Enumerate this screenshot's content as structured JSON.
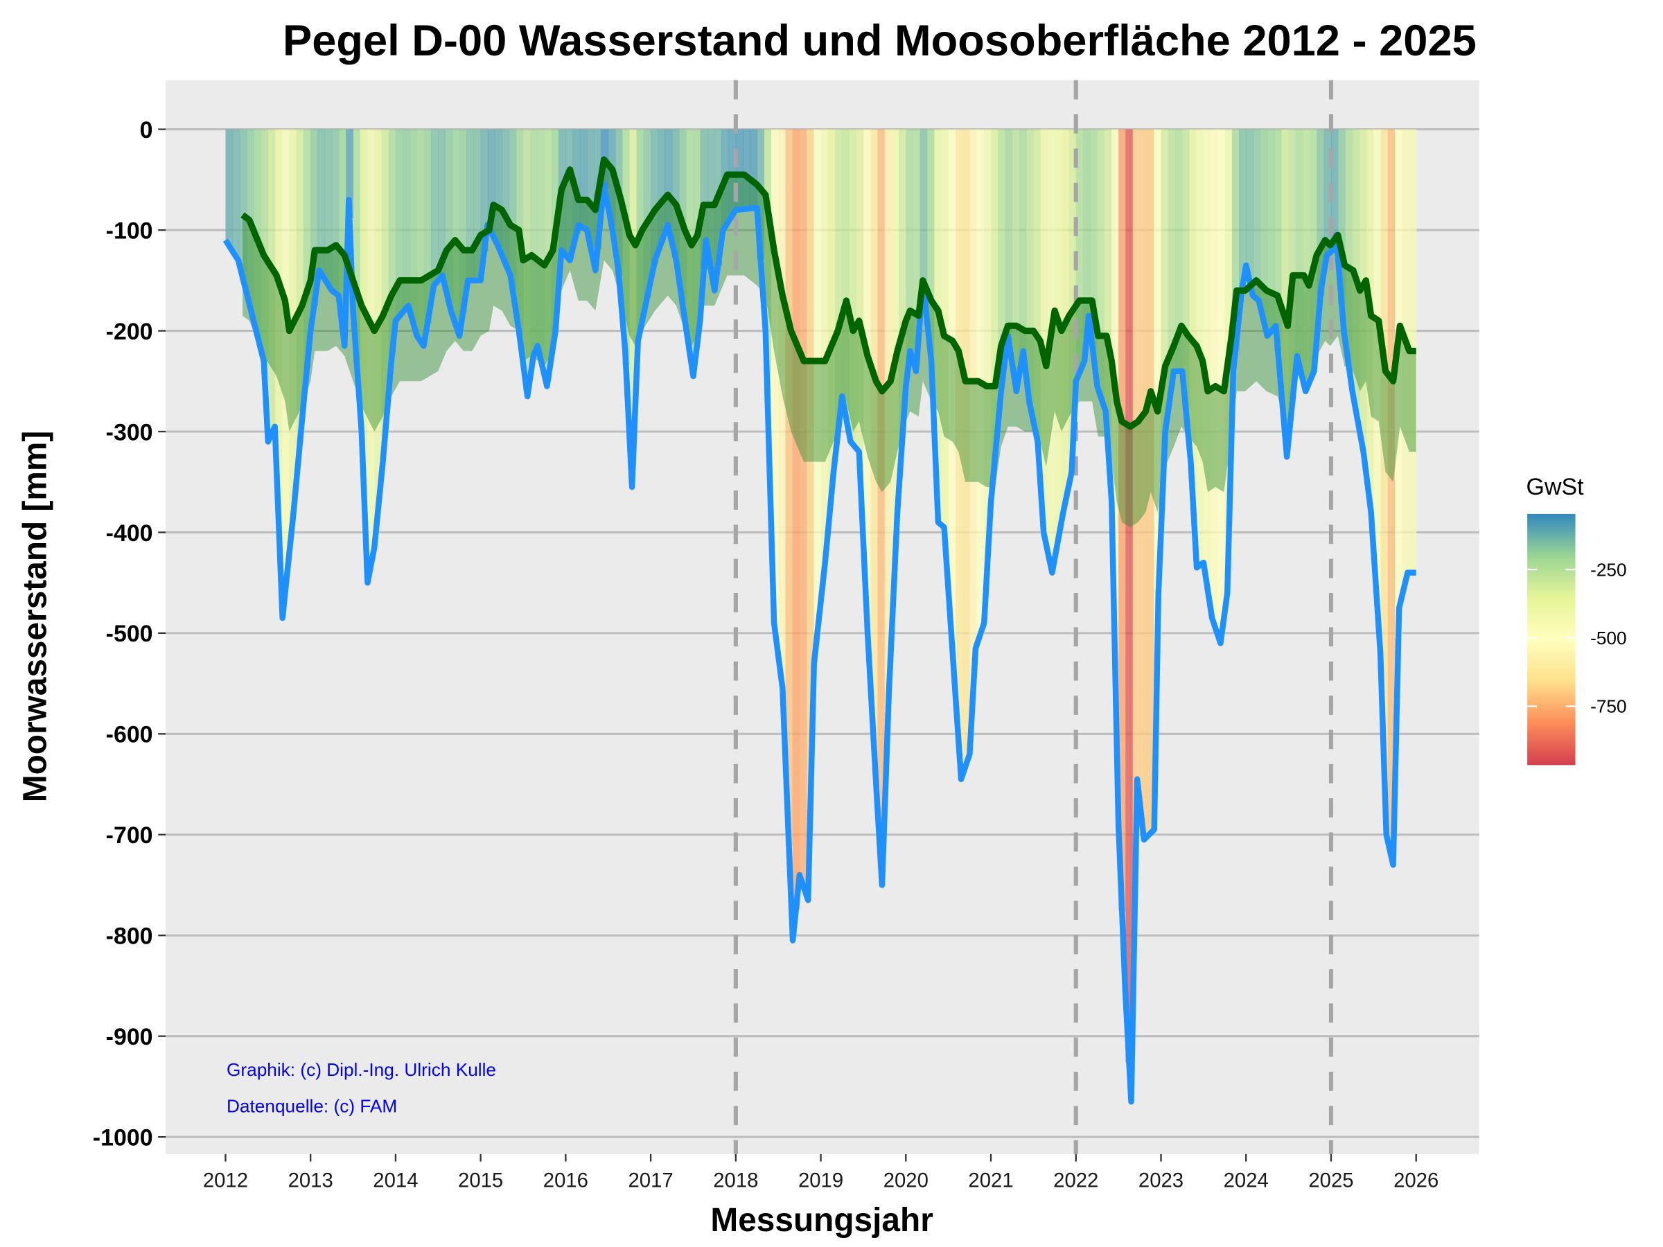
{
  "chart_data": {
    "type": "line",
    "title": "Pegel D-00 Wasserstand und Moosoberfläche 2012 - 2025",
    "xlabel": "Messungsjahr",
    "ylabel": "Moorwasserstand [mm]",
    "xlim": [
      2012,
      2026
    ],
    "ylim": [
      -1000,
      0
    ],
    "x_ticks": [
      "2012",
      "2013",
      "2014",
      "2015",
      "2016",
      "2017",
      "2018",
      "2019",
      "2020",
      "2021",
      "2022",
      "2023",
      "2024",
      "2025",
      "2026"
    ],
    "y_ticks": [
      "0",
      "-100",
      "-200",
      "-300",
      "-400",
      "-500",
      "-600",
      "-700",
      "-800",
      "-900",
      "-1000"
    ],
    "grid": "horizontal",
    "dashed_vlines": [
      2018,
      2022,
      2025
    ],
    "annotations": [
      "Graphik: (c) Dipl.-Ing. Ulrich Kulle",
      "Datenquelle: (c) FAM"
    ],
    "legend": {
      "title": "GwSt",
      "position": "right",
      "ticks": [
        "-250",
        "-500",
        "-750"
      ],
      "range": [
        -965,
        -47
      ],
      "colors": [
        "#3288bd",
        "#99d594",
        "#e6f598",
        "#ffffbf",
        "#fee08b",
        "#fc8d59",
        "#d53e4f"
      ]
    },
    "colors": {
      "water": "#1e90ff",
      "moss": "#006400",
      "band": "#2e8b2e",
      "panel": "#ebebeb",
      "grid": "#bdbdbd",
      "vline": "#a6a6a6"
    },
    "moss_band_depth_mm": 100,
    "series": [
      {
        "key": "water",
        "points": [
          [
            2012.0,
            -110
          ],
          [
            2012.15,
            -130
          ],
          [
            2012.3,
            -180
          ],
          [
            2012.45,
            -230
          ],
          [
            2012.5,
            -310
          ],
          [
            2012.58,
            -295
          ],
          [
            2012.67,
            -485
          ],
          [
            2012.8,
            -380
          ],
          [
            2012.92,
            -270
          ],
          [
            2013.0,
            -200
          ],
          [
            2013.1,
            -140
          ],
          [
            2013.25,
            -160
          ],
          [
            2013.33,
            -165
          ],
          [
            2013.4,
            -215
          ],
          [
            2013.45,
            -70
          ],
          [
            2013.5,
            -180
          ],
          [
            2013.6,
            -300
          ],
          [
            2013.67,
            -450
          ],
          [
            2013.75,
            -415
          ],
          [
            2013.85,
            -330
          ],
          [
            2013.95,
            -230
          ],
          [
            2014.0,
            -190
          ],
          [
            2014.1,
            -180
          ],
          [
            2014.15,
            -175
          ],
          [
            2014.25,
            -205
          ],
          [
            2014.33,
            -215
          ],
          [
            2014.45,
            -155
          ],
          [
            2014.55,
            -145
          ],
          [
            2014.65,
            -180
          ],
          [
            2014.75,
            -205
          ],
          [
            2014.85,
            -150
          ],
          [
            2015.0,
            -150
          ],
          [
            2015.08,
            -95
          ],
          [
            2015.2,
            -115
          ],
          [
            2015.35,
            -145
          ],
          [
            2015.45,
            -200
          ],
          [
            2015.55,
            -265
          ],
          [
            2015.62,
            -225
          ],
          [
            2015.67,
            -215
          ],
          [
            2015.78,
            -255
          ],
          [
            2015.88,
            -200
          ],
          [
            2015.95,
            -120
          ],
          [
            2016.05,
            -130
          ],
          [
            2016.15,
            -95
          ],
          [
            2016.25,
            -100
          ],
          [
            2016.35,
            -140
          ],
          [
            2016.45,
            -55
          ],
          [
            2016.55,
            -100
          ],
          [
            2016.62,
            -140
          ],
          [
            2016.7,
            -220
          ],
          [
            2016.78,
            -355
          ],
          [
            2016.85,
            -210
          ],
          [
            2016.95,
            -170
          ],
          [
            2017.05,
            -130
          ],
          [
            2017.2,
            -95
          ],
          [
            2017.3,
            -130
          ],
          [
            2017.42,
            -200
          ],
          [
            2017.5,
            -245
          ],
          [
            2017.58,
            -190
          ],
          [
            2017.65,
            -110
          ],
          [
            2017.75,
            -160
          ],
          [
            2017.85,
            -100
          ],
          [
            2018.0,
            -80
          ],
          [
            2018.25,
            -78
          ],
          [
            2018.35,
            -200
          ],
          [
            2018.45,
            -490
          ],
          [
            2018.55,
            -555
          ],
          [
            2018.67,
            -805
          ],
          [
            2018.75,
            -740
          ],
          [
            2018.85,
            -765
          ],
          [
            2018.92,
            -530
          ],
          [
            2019.05,
            -430
          ],
          [
            2019.15,
            -340
          ],
          [
            2019.25,
            -265
          ],
          [
            2019.35,
            -310
          ],
          [
            2019.45,
            -320
          ],
          [
            2019.55,
            -500
          ],
          [
            2019.65,
            -650
          ],
          [
            2019.72,
            -750
          ],
          [
            2019.8,
            -560
          ],
          [
            2019.9,
            -380
          ],
          [
            2020.0,
            -255
          ],
          [
            2020.05,
            -220
          ],
          [
            2020.12,
            -240
          ],
          [
            2020.2,
            -150
          ],
          [
            2020.3,
            -230
          ],
          [
            2020.38,
            -390
          ],
          [
            2020.45,
            -395
          ],
          [
            2020.55,
            -520
          ],
          [
            2020.65,
            -645
          ],
          [
            2020.75,
            -620
          ],
          [
            2020.82,
            -515
          ],
          [
            2020.92,
            -490
          ],
          [
            2021.0,
            -370
          ],
          [
            2021.12,
            -260
          ],
          [
            2021.2,
            -205
          ],
          [
            2021.3,
            -260
          ],
          [
            2021.38,
            -220
          ],
          [
            2021.45,
            -270
          ],
          [
            2021.55,
            -310
          ],
          [
            2021.62,
            -400
          ],
          [
            2021.72,
            -440
          ],
          [
            2021.85,
            -380
          ],
          [
            2021.95,
            -340
          ],
          [
            2022.0,
            -250
          ],
          [
            2022.1,
            -230
          ],
          [
            2022.15,
            -185
          ],
          [
            2022.25,
            -255
          ],
          [
            2022.35,
            -280
          ],
          [
            2022.42,
            -370
          ],
          [
            2022.5,
            -690
          ],
          [
            2022.58,
            -855
          ],
          [
            2022.65,
            -965
          ],
          [
            2022.72,
            -645
          ],
          [
            2022.8,
            -705
          ],
          [
            2022.92,
            -695
          ],
          [
            2022.97,
            -460
          ],
          [
            2023.05,
            -300
          ],
          [
            2023.15,
            -240
          ],
          [
            2023.25,
            -240
          ],
          [
            2023.35,
            -330
          ],
          [
            2023.42,
            -435
          ],
          [
            2023.5,
            -430
          ],
          [
            2023.6,
            -485
          ],
          [
            2023.7,
            -510
          ],
          [
            2023.78,
            -460
          ],
          [
            2023.85,
            -240
          ],
          [
            2023.95,
            -160
          ],
          [
            2024.0,
            -135
          ],
          [
            2024.08,
            -165
          ],
          [
            2024.15,
            -170
          ],
          [
            2024.25,
            -205
          ],
          [
            2024.35,
            -195
          ],
          [
            2024.48,
            -325
          ],
          [
            2024.6,
            -225
          ],
          [
            2024.7,
            -260
          ],
          [
            2024.8,
            -240
          ],
          [
            2024.88,
            -160
          ],
          [
            2024.95,
            -125
          ],
          [
            2025.02,
            -120
          ],
          [
            2025.06,
            -105
          ],
          [
            2025.15,
            -200
          ],
          [
            2025.25,
            -260
          ],
          [
            2025.38,
            -320
          ],
          [
            2025.47,
            -380
          ],
          [
            2025.58,
            -520
          ],
          [
            2025.65,
            -700
          ],
          [
            2025.73,
            -730
          ],
          [
            2025.8,
            -475
          ],
          [
            2025.9,
            -440
          ],
          [
            2026.0,
            -440
          ]
        ]
      },
      {
        "key": "moss",
        "points": [
          [
            2012.2,
            -85
          ],
          [
            2012.28,
            -90
          ],
          [
            2012.45,
            -125
          ],
          [
            2012.6,
            -145
          ],
          [
            2012.7,
            -170
          ],
          [
            2012.75,
            -200
          ],
          [
            2012.9,
            -175
          ],
          [
            2013.0,
            -150
          ],
          [
            2013.05,
            -120
          ],
          [
            2013.2,
            -120
          ],
          [
            2013.3,
            -115
          ],
          [
            2013.4,
            -125
          ],
          [
            2013.5,
            -150
          ],
          [
            2013.6,
            -175
          ],
          [
            2013.75,
            -200
          ],
          [
            2013.85,
            -185
          ],
          [
            2013.95,
            -165
          ],
          [
            2014.05,
            -150
          ],
          [
            2014.3,
            -150
          ],
          [
            2014.5,
            -140
          ],
          [
            2014.6,
            -120
          ],
          [
            2014.7,
            -110
          ],
          [
            2014.8,
            -120
          ],
          [
            2014.9,
            -120
          ],
          [
            2015.0,
            -105
          ],
          [
            2015.1,
            -100
          ],
          [
            2015.15,
            -75
          ],
          [
            2015.25,
            -80
          ],
          [
            2015.35,
            -95
          ],
          [
            2015.45,
            -100
          ],
          [
            2015.5,
            -130
          ],
          [
            2015.6,
            -125
          ],
          [
            2015.75,
            -135
          ],
          [
            2015.85,
            -120
          ],
          [
            2015.95,
            -60
          ],
          [
            2016.05,
            -40
          ],
          [
            2016.15,
            -70
          ],
          [
            2016.25,
            -70
          ],
          [
            2016.35,
            -80
          ],
          [
            2016.45,
            -30
          ],
          [
            2016.55,
            -40
          ],
          [
            2016.65,
            -70
          ],
          [
            2016.75,
            -105
          ],
          [
            2016.82,
            -115
          ],
          [
            2016.9,
            -100
          ],
          [
            2017.05,
            -80
          ],
          [
            2017.2,
            -65
          ],
          [
            2017.3,
            -75
          ],
          [
            2017.4,
            -100
          ],
          [
            2017.48,
            -115
          ],
          [
            2017.55,
            -105
          ],
          [
            2017.62,
            -75
          ],
          [
            2017.75,
            -75
          ],
          [
            2017.9,
            -45
          ],
          [
            2018.0,
            -45
          ],
          [
            2018.1,
            -45
          ],
          [
            2018.25,
            -55
          ],
          [
            2018.35,
            -65
          ],
          [
            2018.45,
            -120
          ],
          [
            2018.55,
            -165
          ],
          [
            2018.65,
            -200
          ],
          [
            2018.8,
            -230
          ],
          [
            2019.05,
            -230
          ],
          [
            2019.2,
            -200
          ],
          [
            2019.3,
            -170
          ],
          [
            2019.38,
            -200
          ],
          [
            2019.45,
            -190
          ],
          [
            2019.55,
            -225
          ],
          [
            2019.65,
            -250
          ],
          [
            2019.72,
            -260
          ],
          [
            2019.82,
            -250
          ],
          [
            2019.9,
            -220
          ],
          [
            2020.0,
            -190
          ],
          [
            2020.05,
            -180
          ],
          [
            2020.15,
            -185
          ],
          [
            2020.2,
            -150
          ],
          [
            2020.3,
            -170
          ],
          [
            2020.38,
            -180
          ],
          [
            2020.45,
            -205
          ],
          [
            2020.55,
            -210
          ],
          [
            2020.62,
            -220
          ],
          [
            2020.7,
            -250
          ],
          [
            2020.85,
            -250
          ],
          [
            2020.95,
            -255
          ],
          [
            2021.05,
            -255
          ],
          [
            2021.12,
            -215
          ],
          [
            2021.2,
            -195
          ],
          [
            2021.3,
            -195
          ],
          [
            2021.4,
            -200
          ],
          [
            2021.5,
            -200
          ],
          [
            2021.58,
            -210
          ],
          [
            2021.65,
            -235
          ],
          [
            2021.75,
            -180
          ],
          [
            2021.83,
            -200
          ],
          [
            2021.92,
            -185
          ],
          [
            2022.04,
            -170
          ],
          [
            2022.13,
            -170
          ],
          [
            2022.19,
            -170
          ],
          [
            2022.26,
            -205
          ],
          [
            2022.36,
            -205
          ],
          [
            2022.42,
            -230
          ],
          [
            2022.48,
            -270
          ],
          [
            2022.54,
            -290
          ],
          [
            2022.64,
            -295
          ],
          [
            2022.73,
            -290
          ],
          [
            2022.82,
            -280
          ],
          [
            2022.88,
            -260
          ],
          [
            2022.96,
            -280
          ],
          [
            2023.05,
            -235
          ],
          [
            2023.15,
            -215
          ],
          [
            2023.24,
            -195
          ],
          [
            2023.32,
            -205
          ],
          [
            2023.42,
            -215
          ],
          [
            2023.49,
            -230
          ],
          [
            2023.55,
            -260
          ],
          [
            2023.64,
            -255
          ],
          [
            2023.74,
            -260
          ],
          [
            2023.83,
            -205
          ],
          [
            2023.89,
            -160
          ],
          [
            2023.99,
            -160
          ],
          [
            2024.12,
            -150
          ],
          [
            2024.24,
            -160
          ],
          [
            2024.37,
            -165
          ],
          [
            2024.49,
            -195
          ],
          [
            2024.55,
            -145
          ],
          [
            2024.68,
            -145
          ],
          [
            2024.74,
            -155
          ],
          [
            2024.83,
            -125
          ],
          [
            2024.93,
            -110
          ],
          [
            2024.99,
            -115
          ],
          [
            2025.08,
            -105
          ],
          [
            2025.16,
            -135
          ],
          [
            2025.26,
            -140
          ],
          [
            2025.34,
            -160
          ],
          [
            2025.41,
            -150
          ],
          [
            2025.47,
            -185
          ],
          [
            2025.56,
            -190
          ],
          [
            2025.64,
            -240
          ],
          [
            2025.73,
            -250
          ],
          [
            2025.81,
            -195
          ],
          [
            2025.92,
            -220
          ],
          [
            2026.0,
            -220
          ]
        ]
      }
    ]
  }
}
